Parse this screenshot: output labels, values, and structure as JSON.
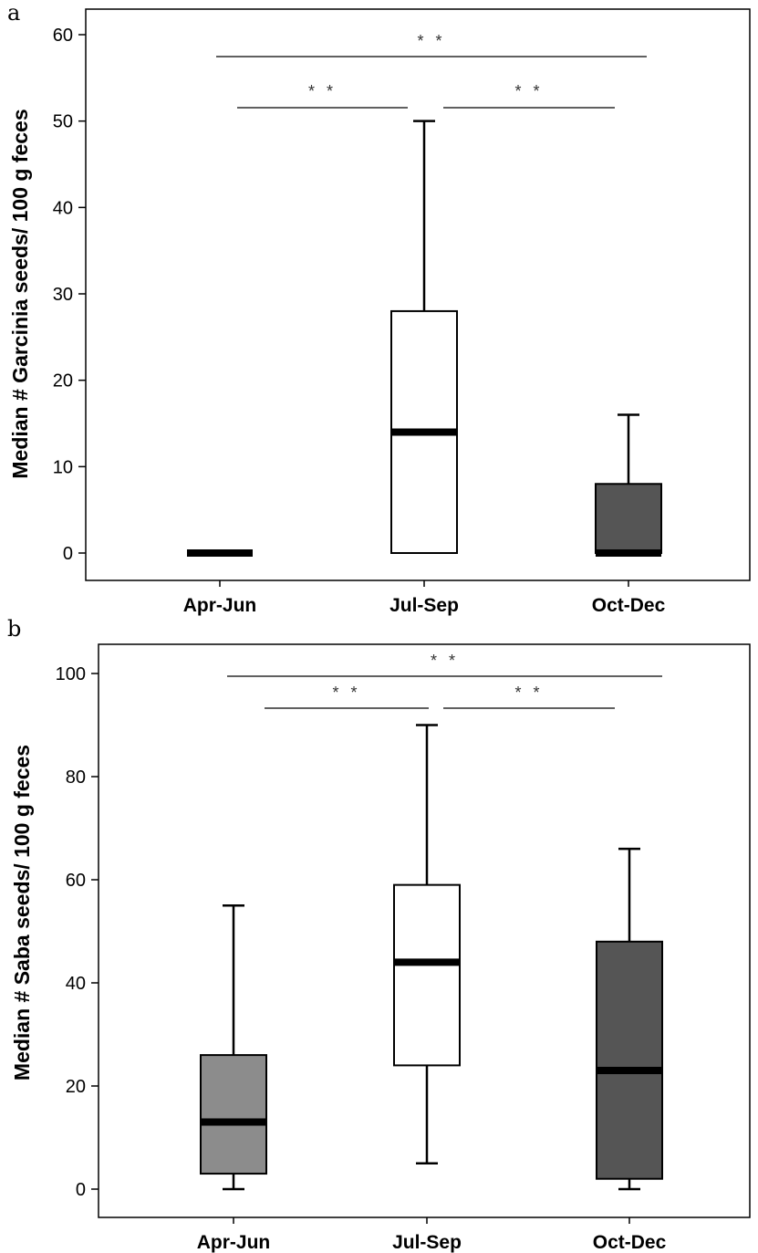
{
  "chart_data": [
    {
      "panel": "a",
      "type": "box",
      "ylabel": "Median # Garcinia seeds/ 100 g feces",
      "ylim": [
        0,
        65
      ],
      "yticks": [
        0,
        10,
        20,
        30,
        40,
        50,
        60
      ],
      "categories": [
        "Apr-Jun",
        "Jul-Sep",
        "Oct-Dec"
      ],
      "boxes": [
        {
          "category": "Apr-Jun",
          "min": 0,
          "q1": 0,
          "median": 0,
          "q3": 0,
          "max": 0,
          "fill": "#000000"
        },
        {
          "category": "Jul-Sep",
          "min": 0,
          "q1": 0,
          "median": 14,
          "q3": 28,
          "max": 50,
          "fill": "#ffffff"
        },
        {
          "category": "Oct-Dec",
          "min": 0,
          "q1": 0,
          "median": 0,
          "q3": 8,
          "max": 16,
          "fill": "#555555"
        }
      ],
      "significance": [
        {
          "from": "Apr-Jun",
          "to": "Oct-Dec",
          "label": "* *"
        },
        {
          "from": "Apr-Jun",
          "to": "Jul-Sep",
          "label": "* *"
        },
        {
          "from": "Jul-Sep",
          "to": "Oct-Dec",
          "label": "* *"
        }
      ]
    },
    {
      "panel": "b",
      "type": "box",
      "ylabel": "Median # Saba seeds/ 100 g feces",
      "ylim": [
        0,
        105
      ],
      "yticks": [
        0,
        20,
        40,
        60,
        80,
        100
      ],
      "categories": [
        "Apr-Jun",
        "Jul-Sep",
        "Oct-Dec"
      ],
      "boxes": [
        {
          "category": "Apr-Jun",
          "min": 0,
          "q1": 3,
          "median": 13,
          "q3": 26,
          "max": 55,
          "fill": "#8c8c8c"
        },
        {
          "category": "Jul-Sep",
          "min": 5,
          "q1": 24,
          "median": 44,
          "q3": 59,
          "max": 90,
          "fill": "#ffffff"
        },
        {
          "category": "Oct-Dec",
          "min": 0,
          "q1": 2,
          "median": 23,
          "q3": 48,
          "max": 66,
          "fill": "#555555"
        }
      ],
      "significance": [
        {
          "from": "Apr-Jun",
          "to": "Oct-Dec",
          "label": "* *"
        },
        {
          "from": "Apr-Jun",
          "to": "Jul-Sep",
          "label": "* *"
        },
        {
          "from": "Jul-Sep",
          "to": "Oct-Dec",
          "label": "* *"
        }
      ]
    }
  ]
}
